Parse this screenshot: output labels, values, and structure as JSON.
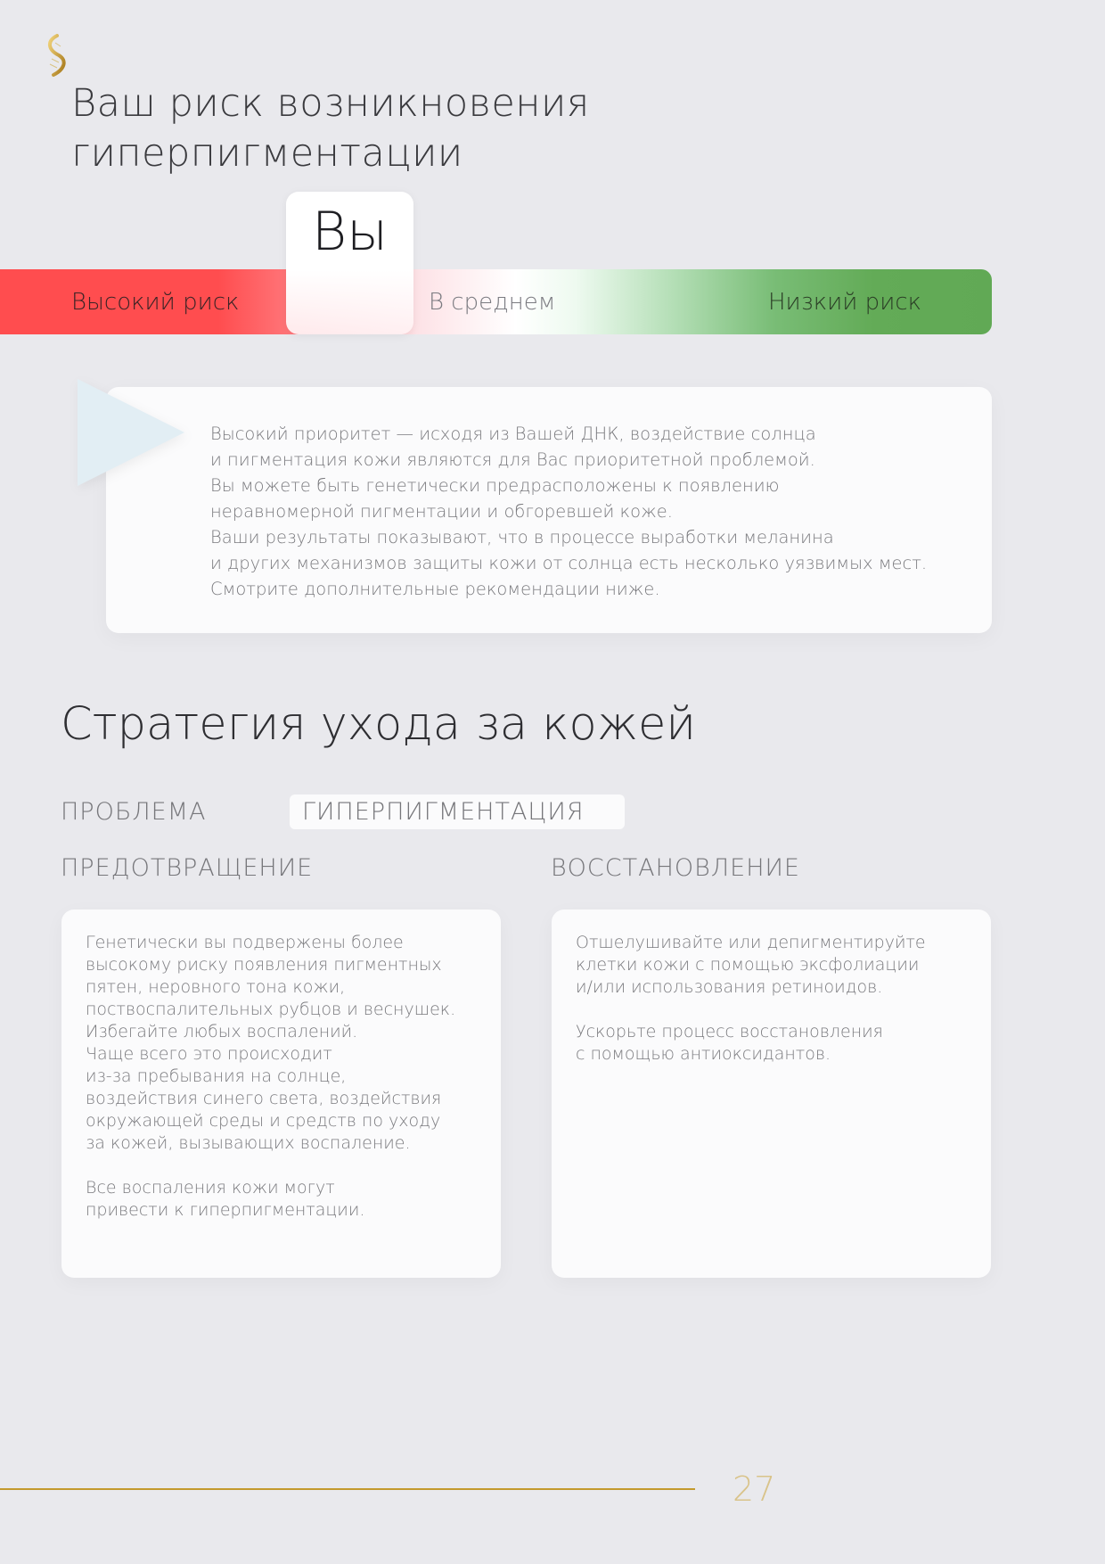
{
  "header": {
    "logo_icon": "dna-helix-gold-icon",
    "title_line1": "Ваш риск возникновения",
    "title_line2": "гиперпигментации"
  },
  "risk_scale": {
    "marker_label": "Вы",
    "marker_position": "high-to-average boundary",
    "labels": {
      "high": "Высокий риск",
      "average": "В среднем",
      "low": "Низкий риск"
    },
    "colors": {
      "high": "#ff4d4f",
      "average": "#ffffff",
      "low": "#61a955"
    }
  },
  "info_card": {
    "text": "Высокий приоритет — исходя из Вашей ДНК, воздействие солнца\nи пигментация кожи являются для Вас приоритетной проблемой.\nВы можете быть генетически предрасположены к появлению\nнеравномерной пигментации и обгоревшей коже.\nВаши результаты показывают, что в процессе выработки меланина\nи других механизмов защиты кожи от солнца есть несколько уязвимых мест.\nСмотрите дополнительные рекомендации ниже."
  },
  "strategy": {
    "heading": "Стратегия ухода за кожей",
    "problem_label": "ПРОБЛЕМА",
    "problem_value": "ГИПЕРПИГМЕНТАЦИЯ",
    "prevention": {
      "label": "ПРЕДОТВРАЩЕНИЕ",
      "text": "Генетически вы подвержены более\nвысокому риску появления пигментных\nпятен, неровного тона кожи,\nпоствоспалительных рубцов и веснушек.\nИзбегайте любых воспалений.\nЧаще всего это происходит\nиз-за пребывания на солнце,\nвоздействия синего света, воздействия\nокружающей среды и средств по уходу\nза кожей, вызывающих воспаление.\n\nВсе воспаления кожи могут\nпривести к гиперпигментации."
    },
    "recovery": {
      "label": "ВОССТАНОВЛЕНИЕ",
      "text": "Отшелушивайте или депигментируйте\nклетки кожи с помощью эксфолиации\nи/или использования ретиноидов.\n\nУскорьте процесс восстановления\nс помощью антиоксидантов."
    }
  },
  "footer": {
    "page_number": "27",
    "accent_color": "#c49a2e"
  }
}
